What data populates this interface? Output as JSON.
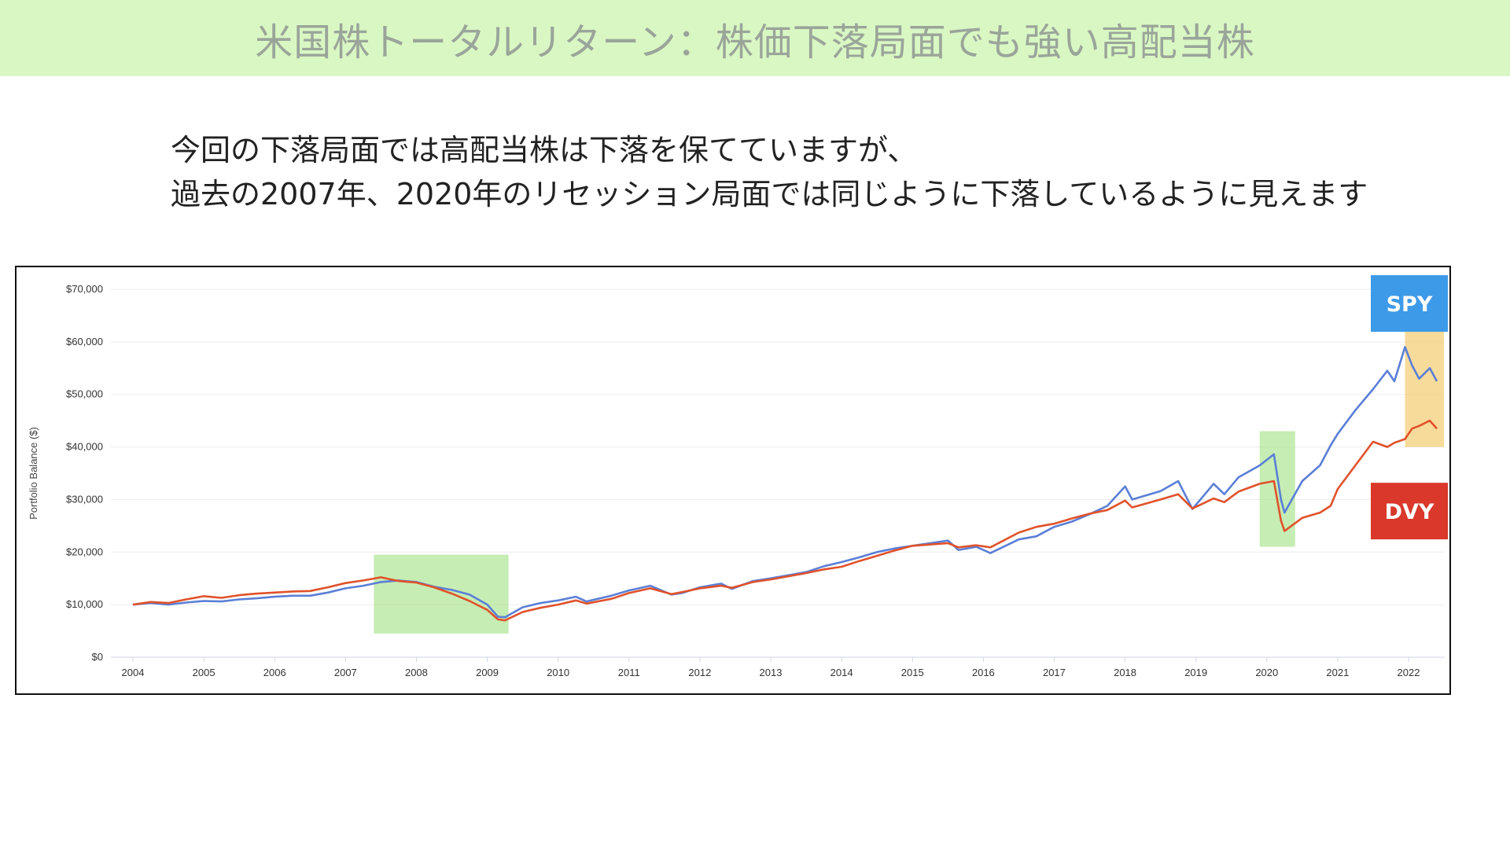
{
  "header": {
    "title": "米国株トータルリターン：株価下落局面でも強い高配当株"
  },
  "body": {
    "line1": "今回の下落局面では高配当株は下落を保てていますが、",
    "line2": "過去の2007年、2020年のリセッション局面では同じように下落しているように見えます"
  },
  "colors": {
    "title_bg": "#d9f7c3",
    "spy": "#5b7fd6",
    "dvy": "#e0522b",
    "spy_label_bg": "#3d9ae8",
    "dvy_label_bg": "#d9382a",
    "highlight_green": "#a8e38a",
    "highlight_orange": "#f2c766"
  },
  "chart_data": {
    "type": "line",
    "ylabel": "Portfolio Balance ($)",
    "xlabel": "",
    "ylim": [
      0,
      70000
    ],
    "xlim": [
      2004,
      2022.6
    ],
    "grid": true,
    "y_ticks": [
      {
        "value": 0,
        "label": "$0"
      },
      {
        "value": 10000,
        "label": "$10,000"
      },
      {
        "value": 20000,
        "label": "$20,000"
      },
      {
        "value": 30000,
        "label": "$30,000"
      },
      {
        "value": 40000,
        "label": "$40,000"
      },
      {
        "value": 50000,
        "label": "$50,000"
      },
      {
        "value": 60000,
        "label": "$60,000"
      },
      {
        "value": 70000,
        "label": "$70,000"
      }
    ],
    "x_ticks": [
      {
        "value": 2004,
        "label": "2004"
      },
      {
        "value": 2005,
        "label": "2005"
      },
      {
        "value": 2006,
        "label": "2006"
      },
      {
        "value": 2007,
        "label": "2007"
      },
      {
        "value": 2008,
        "label": "2008"
      },
      {
        "value": 2009,
        "label": "2009"
      },
      {
        "value": 2010,
        "label": "2010"
      },
      {
        "value": 2011,
        "label": "2011"
      },
      {
        "value": 2012,
        "label": "2012"
      },
      {
        "value": 2013,
        "label": "2013"
      },
      {
        "value": 2014,
        "label": "2014"
      },
      {
        "value": 2015,
        "label": "2015"
      },
      {
        "value": 2016,
        "label": "2016"
      },
      {
        "value": 2017,
        "label": "2017"
      },
      {
        "value": 2018,
        "label": "2018"
      },
      {
        "value": 2019,
        "label": "2019"
      },
      {
        "value": 2020,
        "label": "2020"
      },
      {
        "value": 2021,
        "label": "2021"
      },
      {
        "value": 2022,
        "label": "2022"
      }
    ],
    "series": [
      {
        "name": "SPY",
        "points": [
          [
            2004.0,
            10000
          ],
          [
            2004.25,
            10300
          ],
          [
            2004.5,
            10000
          ],
          [
            2004.75,
            10400
          ],
          [
            2005.0,
            10700
          ],
          [
            2005.25,
            10600
          ],
          [
            2005.5,
            11000
          ],
          [
            2005.75,
            11200
          ],
          [
            2006.0,
            11500
          ],
          [
            2006.25,
            11700
          ],
          [
            2006.5,
            11700
          ],
          [
            2006.75,
            12300
          ],
          [
            2007.0,
            13100
          ],
          [
            2007.25,
            13600
          ],
          [
            2007.5,
            14300
          ],
          [
            2007.75,
            14600
          ],
          [
            2008.0,
            14300
          ],
          [
            2008.25,
            13400
          ],
          [
            2008.5,
            12800
          ],
          [
            2008.75,
            11900
          ],
          [
            2009.0,
            10000
          ],
          [
            2009.15,
            7700
          ],
          [
            2009.25,
            7600
          ],
          [
            2009.5,
            9500
          ],
          [
            2009.75,
            10300
          ],
          [
            2010.0,
            10800
          ],
          [
            2010.25,
            11500
          ],
          [
            2010.4,
            10600
          ],
          [
            2010.75,
            11700
          ],
          [
            2011.0,
            12700
          ],
          [
            2011.3,
            13600
          ],
          [
            2011.6,
            11900
          ],
          [
            2011.75,
            12200
          ],
          [
            2012.0,
            13300
          ],
          [
            2012.3,
            14000
          ],
          [
            2012.45,
            13000
          ],
          [
            2012.75,
            14500
          ],
          [
            2013.0,
            15000
          ],
          [
            2013.5,
            16200
          ],
          [
            2013.75,
            17300
          ],
          [
            2014.0,
            18100
          ],
          [
            2014.25,
            19000
          ],
          [
            2014.5,
            20000
          ],
          [
            2014.75,
            20700
          ],
          [
            2015.0,
            21200
          ],
          [
            2015.5,
            22200
          ],
          [
            2015.65,
            20400
          ],
          [
            2015.9,
            21000
          ],
          [
            2016.1,
            19800
          ],
          [
            2016.5,
            22400
          ],
          [
            2016.75,
            23000
          ],
          [
            2017.0,
            24800
          ],
          [
            2017.25,
            25800
          ],
          [
            2017.5,
            27200
          ],
          [
            2017.75,
            28800
          ],
          [
            2018.0,
            32500
          ],
          [
            2018.1,
            30000
          ],
          [
            2018.5,
            31600
          ],
          [
            2018.75,
            33500
          ],
          [
            2018.95,
            28200
          ],
          [
            2019.25,
            33000
          ],
          [
            2019.4,
            31000
          ],
          [
            2019.6,
            34200
          ],
          [
            2019.9,
            36500
          ],
          [
            2020.1,
            38600
          ],
          [
            2020.2,
            30000
          ],
          [
            2020.25,
            27500
          ],
          [
            2020.5,
            33500
          ],
          [
            2020.75,
            36500
          ],
          [
            2020.9,
            40300
          ],
          [
            2021.0,
            42500
          ],
          [
            2021.25,
            47000
          ],
          [
            2021.5,
            51000
          ],
          [
            2021.7,
            54500
          ],
          [
            2021.8,
            52500
          ],
          [
            2021.95,
            59000
          ],
          [
            2022.05,
            55500
          ],
          [
            2022.15,
            53000
          ],
          [
            2022.3,
            55000
          ],
          [
            2022.4,
            52500
          ]
        ]
      },
      {
        "name": "DVY",
        "points": [
          [
            2004.0,
            10000
          ],
          [
            2004.25,
            10500
          ],
          [
            2004.5,
            10300
          ],
          [
            2004.75,
            11000
          ],
          [
            2005.0,
            11600
          ],
          [
            2005.25,
            11300
          ],
          [
            2005.5,
            11800
          ],
          [
            2005.75,
            12100
          ],
          [
            2006.0,
            12300
          ],
          [
            2006.25,
            12500
          ],
          [
            2006.5,
            12600
          ],
          [
            2006.75,
            13300
          ],
          [
            2007.0,
            14100
          ],
          [
            2007.25,
            14600
          ],
          [
            2007.5,
            15200
          ],
          [
            2007.75,
            14500
          ],
          [
            2008.0,
            14200
          ],
          [
            2008.25,
            13300
          ],
          [
            2008.5,
            12100
          ],
          [
            2008.75,
            10700
          ],
          [
            2009.0,
            9000
          ],
          [
            2009.15,
            7200
          ],
          [
            2009.25,
            7000
          ],
          [
            2009.5,
            8600
          ],
          [
            2009.75,
            9400
          ],
          [
            2010.0,
            10000
          ],
          [
            2010.25,
            10800
          ],
          [
            2010.4,
            10200
          ],
          [
            2010.75,
            11100
          ],
          [
            2011.0,
            12200
          ],
          [
            2011.3,
            13100
          ],
          [
            2011.6,
            12000
          ],
          [
            2011.75,
            12400
          ],
          [
            2012.0,
            13100
          ],
          [
            2012.3,
            13600
          ],
          [
            2012.45,
            13200
          ],
          [
            2012.75,
            14300
          ],
          [
            2013.0,
            14800
          ],
          [
            2013.5,
            16000
          ],
          [
            2013.75,
            16700
          ],
          [
            2014.0,
            17200
          ],
          [
            2014.25,
            18300
          ],
          [
            2014.5,
            19300
          ],
          [
            2014.75,
            20300
          ],
          [
            2015.0,
            21200
          ],
          [
            2015.5,
            21700
          ],
          [
            2015.65,
            20900
          ],
          [
            2015.9,
            21300
          ],
          [
            2016.1,
            20900
          ],
          [
            2016.5,
            23700
          ],
          [
            2016.75,
            24800
          ],
          [
            2017.0,
            25400
          ],
          [
            2017.25,
            26400
          ],
          [
            2017.5,
            27300
          ],
          [
            2017.75,
            28000
          ],
          [
            2018.0,
            29800
          ],
          [
            2018.1,
            28500
          ],
          [
            2018.5,
            30000
          ],
          [
            2018.75,
            31000
          ],
          [
            2018.95,
            28300
          ],
          [
            2019.25,
            30200
          ],
          [
            2019.4,
            29500
          ],
          [
            2019.6,
            31500
          ],
          [
            2019.9,
            33000
          ],
          [
            2020.1,
            33500
          ],
          [
            2020.2,
            26000
          ],
          [
            2020.25,
            24000
          ],
          [
            2020.5,
            26500
          ],
          [
            2020.75,
            27500
          ],
          [
            2020.9,
            28800
          ],
          [
            2021.0,
            32000
          ],
          [
            2021.25,
            36500
          ],
          [
            2021.5,
            41000
          ],
          [
            2021.7,
            40000
          ],
          [
            2021.8,
            40800
          ],
          [
            2021.95,
            41500
          ],
          [
            2022.05,
            43500
          ],
          [
            2022.15,
            44000
          ],
          [
            2022.3,
            45000
          ],
          [
            2022.4,
            43500
          ]
        ]
      }
    ],
    "highlights": [
      {
        "color": "green",
        "x": [
          2007.4,
          2009.3
        ],
        "y": [
          4500,
          19500
        ]
      },
      {
        "color": "green",
        "x": [
          2019.9,
          2020.4
        ],
        "y": [
          21000,
          43000
        ]
      },
      {
        "color": "orange",
        "x": [
          2021.95,
          2022.5
        ],
        "y": [
          40000,
          62000
        ]
      }
    ],
    "labels": [
      {
        "text": "SPY",
        "series": "SPY"
      },
      {
        "text": "DVY",
        "series": "DVY"
      }
    ]
  }
}
